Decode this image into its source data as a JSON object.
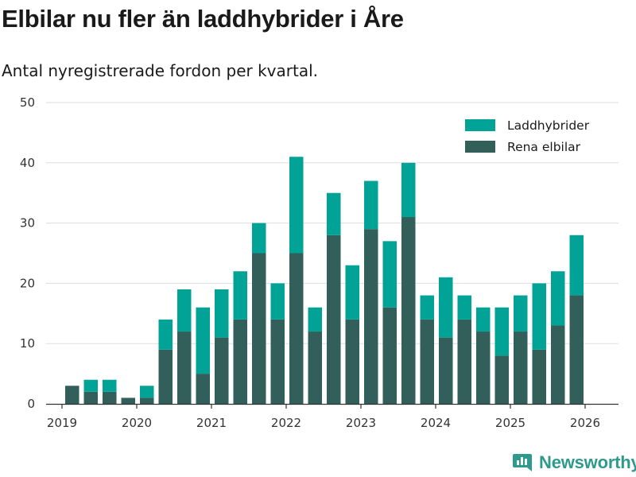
{
  "header": {
    "title": "Elbilar nu fler än laddhybrider i Åre",
    "subtitle": "Antal nyregistrerade fordon per kvartal."
  },
  "brand": {
    "name": "Newsworthy",
    "icon": "newsworthy-logo-icon"
  },
  "colors": {
    "rena_elbilar": "#335f5b",
    "laddhybrider": "#00a396",
    "grid": "#dddddd",
    "axis": "#333333"
  },
  "chart_data": {
    "type": "bar",
    "stacked": true,
    "title": "Elbilar nu fler än laddhybrider i Åre",
    "subtitle": "Antal nyregistrerade fordon per kvartal.",
    "xlabel": "",
    "ylabel": "",
    "ylim": [
      0,
      50
    ],
    "yticks": [
      0,
      10,
      20,
      30,
      40,
      50
    ],
    "grid": true,
    "legend_position": "top-right",
    "x_tick_labels": [
      "2019",
      "2020",
      "2021",
      "2022",
      "2023",
      "2024",
      "2025",
      "2026"
    ],
    "first_quarter": "2019-Q1",
    "categories": [
      "2019 Q1",
      "2019 Q2",
      "2019 Q3",
      "2019 Q4",
      "2020 Q1",
      "2020 Q2",
      "2020 Q3",
      "2020 Q4",
      "2021 Q1",
      "2021 Q2",
      "2021 Q3",
      "2021 Q4",
      "2022 Q1",
      "2022 Q2",
      "2022 Q3",
      "2022 Q4",
      "2023 Q1",
      "2023 Q2",
      "2023 Q3",
      "2023 Q4",
      "2024 Q1",
      "2024 Q2",
      "2024 Q3",
      "2024 Q4",
      "2025 Q1",
      "2025 Q2",
      "2025 Q3",
      "2025 Q4"
    ],
    "series": [
      {
        "name": "Rena elbilar",
        "color": "#335f5b",
        "values": [
          3,
          2,
          2,
          1,
          1,
          9,
          12,
          5,
          11,
          14,
          25,
          14,
          25,
          12,
          28,
          14,
          29,
          16,
          31,
          14,
          11,
          14,
          12,
          8,
          12,
          9,
          13,
          18
        ]
      },
      {
        "name": "Laddhybrider",
        "color": "#00a396",
        "values": [
          0,
          2,
          2,
          0,
          2,
          5,
          7,
          11,
          8,
          8,
          5,
          6,
          16,
          4,
          7,
          9,
          8,
          11,
          9,
          4,
          10,
          4,
          4,
          8,
          6,
          11,
          9,
          10
        ]
      }
    ],
    "legend": [
      "Laddhybrider",
      "Rena elbilar"
    ]
  }
}
